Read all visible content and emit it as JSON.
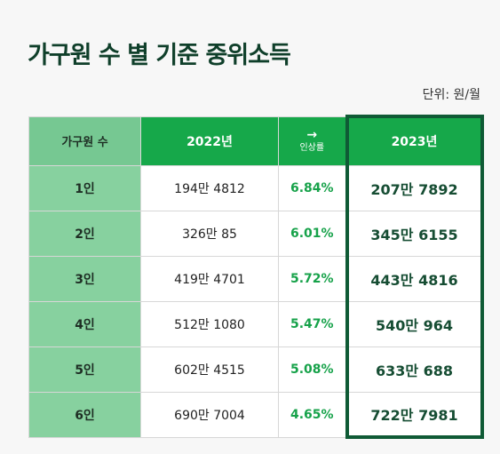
{
  "title": "가구원 수 별 기준 중위소득",
  "unit": "단위: 원/월",
  "table": {
    "headers": {
      "category": "가구원 수",
      "year_2022": "2022년",
      "arrow": "→",
      "rate": "인상률",
      "year_2023": "2023년"
    },
    "rows": [
      {
        "size": "1인",
        "v2022": "194만 4812",
        "rate": "6.84%",
        "v2023": "207만 7892"
      },
      {
        "size": "2인",
        "v2022": "326만 85",
        "rate": "6.01%",
        "v2023": "345만 6155"
      },
      {
        "size": "3인",
        "v2022": "419만 4701",
        "rate": "5.72%",
        "v2023": "443만 4816"
      },
      {
        "size": "4인",
        "v2022": "512만 1080",
        "rate": "5.47%",
        "v2023": "540만 964"
      },
      {
        "size": "5인",
        "v2022": "602만 4515",
        "rate": "5.08%",
        "v2023": "633만 688"
      },
      {
        "size": "6인",
        "v2022": "690만 7004",
        "rate": "4.65%",
        "v2023": "722만 7981"
      }
    ]
  },
  "colors": {
    "title": "#0f3f2a",
    "header_green": "#16a84a",
    "category_green": "#87d19f",
    "highlight_border": "#0f5a35",
    "rate_text": "#17a24a"
  }
}
